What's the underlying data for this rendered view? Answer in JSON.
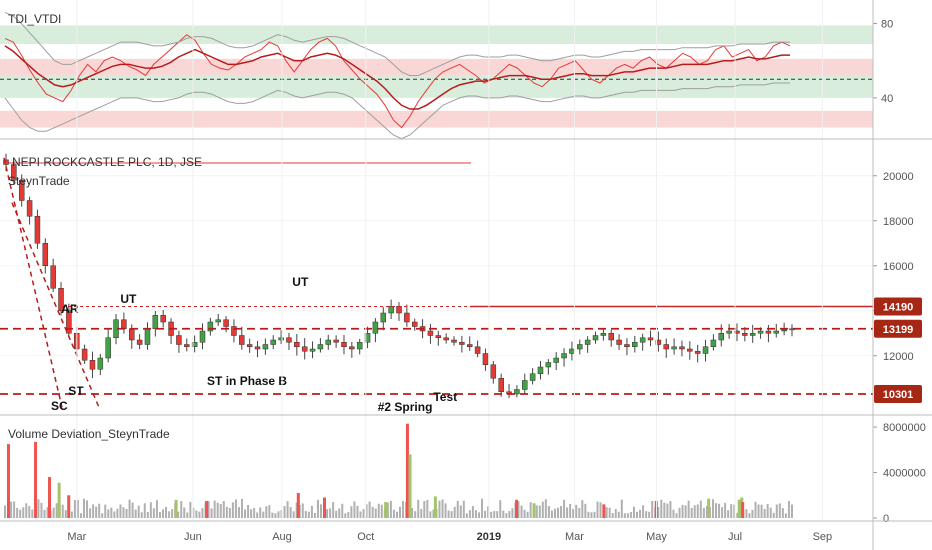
{
  "chart_data": [
    {
      "type": "line",
      "title": "TDI_VTDI",
      "y_ticks": [
        40,
        80
      ],
      "ylim": [
        20,
        90
      ],
      "bands": [
        {
          "from": 69,
          "to": 79,
          "color": "#d8eddc"
        },
        {
          "from": 52,
          "to": 61,
          "color": "#f9d7d7"
        },
        {
          "from": 40,
          "to": 52,
          "color": "#d8eddc"
        },
        {
          "from": 24,
          "to": 33,
          "color": "#f9d7d7"
        }
      ],
      "midline": 50,
      "series": [
        {
          "role": "rsi",
          "color": "#e53935",
          "values": [
            72,
            70,
            63,
            55,
            48,
            42,
            40,
            38,
            44,
            52,
            58,
            54,
            60,
            62,
            60,
            57,
            55,
            52,
            58,
            62,
            66,
            70,
            74,
            71,
            64,
            58,
            56,
            55,
            58,
            62,
            64,
            66,
            70,
            68,
            60,
            54,
            60,
            66,
            70,
            72,
            68,
            60,
            55,
            50,
            46,
            42,
            36,
            28,
            24,
            30,
            38,
            44,
            50,
            54,
            56,
            58,
            55,
            52,
            48,
            50,
            54,
            58,
            56,
            52,
            48,
            46,
            50,
            56,
            58,
            60,
            55,
            50,
            48,
            52,
            56,
            58,
            56,
            60,
            62,
            58,
            56,
            60,
            64,
            62,
            58,
            60,
            66,
            68,
            62,
            64,
            66,
            60,
            62,
            68,
            70,
            68
          ]
        },
        {
          "role": "signal",
          "color": "#b71c1c",
          "values": [
            68,
            65,
            61,
            57,
            53,
            50,
            47,
            46,
            47,
            49,
            51,
            53,
            55,
            57,
            58,
            58,
            57,
            56,
            56,
            57,
            59,
            62,
            64,
            66,
            64,
            62,
            60,
            58,
            58,
            59,
            60,
            62,
            63,
            64,
            62,
            60,
            60,
            62,
            63,
            64,
            63,
            61,
            58,
            55,
            52,
            49,
            45,
            40,
            36,
            34,
            34,
            36,
            39,
            42,
            45,
            47,
            48,
            49,
            49,
            50,
            51,
            52,
            52,
            52,
            51,
            50,
            50,
            51,
            52,
            53,
            53,
            52,
            52,
            52,
            53,
            54,
            54,
            55,
            56,
            56,
            56,
            57,
            58,
            58,
            58,
            58,
            59,
            60,
            60,
            61,
            62,
            61,
            61,
            62,
            63,
            63
          ]
        },
        {
          "role": "upper_band",
          "color": "#9e9e9e",
          "values": [
            86,
            84,
            80,
            75,
            70,
            65,
            60,
            58,
            58,
            60,
            62,
            64,
            66,
            68,
            70,
            70,
            70,
            69,
            68,
            68,
            69,
            70,
            72,
            73,
            73,
            72,
            70,
            68,
            67,
            67,
            68,
            70,
            72,
            74,
            73,
            71,
            70,
            71,
            72,
            73,
            73,
            72,
            70,
            68,
            66,
            64,
            62,
            58,
            54,
            52,
            52,
            54,
            56,
            58,
            60,
            62,
            63,
            63,
            62,
            62,
            62,
            63,
            63,
            62,
            61,
            60,
            60,
            61,
            62,
            63,
            63,
            62,
            62,
            63,
            64,
            65,
            65,
            66,
            66,
            66,
            66,
            66,
            67,
            67,
            67,
            67,
            68,
            68,
            68,
            69,
            69,
            69,
            69,
            70,
            70,
            70
          ]
        },
        {
          "role": "lower_band",
          "color": "#9e9e9e",
          "values": [
            40,
            34,
            28,
            24,
            22,
            22,
            24,
            26,
            28,
            30,
            32,
            34,
            36,
            38,
            40,
            40,
            40,
            39,
            38,
            38,
            39,
            40,
            42,
            43,
            43,
            42,
            40,
            38,
            37,
            37,
            38,
            40,
            42,
            44,
            43,
            41,
            40,
            41,
            42,
            43,
            43,
            42,
            40,
            36,
            32,
            28,
            24,
            20,
            18,
            20,
            24,
            28,
            32,
            36,
            38,
            40,
            41,
            41,
            40,
            40,
            40,
            41,
            41,
            40,
            39,
            38,
            38,
            39,
            40,
            41,
            41,
            40,
            40,
            41,
            42,
            43,
            43,
            44,
            44,
            44,
            44,
            44,
            45,
            45,
            45,
            45,
            46,
            46,
            46,
            47,
            47,
            47,
            47,
            48,
            48,
            48
          ]
        }
      ]
    },
    {
      "type": "candlestick",
      "title": "NEPI ROCKCASTLE PLC, 1D, JSE",
      "subtitle": "SteynTrade",
      "y_ticks": [
        12000,
        14000,
        16000,
        18000,
        20000
      ],
      "ylim": [
        9500,
        21500
      ],
      "x_labels": [
        "Mar",
        "Jun",
        "Aug",
        "Oct",
        "2019",
        "Mar",
        "May",
        "Jul",
        "Sep"
      ],
      "x_label_positions": [
        0.088,
        0.221,
        0.323,
        0.419,
        0.56,
        0.658,
        0.752,
        0.842,
        0.942
      ],
      "closes": [
        20500,
        19800,
        18900,
        18200,
        17000,
        16000,
        15000,
        14000,
        13000,
        12300,
        11800,
        11400,
        11900,
        12800,
        13600,
        13200,
        12700,
        12500,
        13200,
        13800,
        13500,
        12900,
        12500,
        12400,
        12600,
        13100,
        13500,
        13600,
        13300,
        12900,
        12500,
        12400,
        12300,
        12500,
        12700,
        12800,
        12600,
        12400,
        12200,
        12300,
        12500,
        12700,
        12600,
        12400,
        12300,
        12600,
        13000,
        13500,
        13900,
        14200,
        13900,
        13500,
        13300,
        13100,
        12900,
        12800,
        12700,
        12600,
        12500,
        12400,
        12100,
        11600,
        11000,
        10400,
        10300,
        10500,
        10900,
        11200,
        11500,
        11700,
        11900,
        12100,
        12300,
        12500,
        12700,
        12900,
        13000,
        12700,
        12500,
        12400,
        12600,
        12800,
        12700,
        12500,
        12300,
        12400,
        12300,
        12200,
        12100,
        12400,
        12700,
        13000,
        13100,
        13000,
        12900,
        13000,
        13100,
        13000,
        13100,
        13150,
        13200
      ],
      "levels": [
        {
          "value": 14190,
          "label": "14190",
          "style": "dotted",
          "color": "#c62828"
        },
        {
          "value": 13199,
          "label": "13199",
          "style": "dashed",
          "color": "#b71c1c"
        },
        {
          "value": 10301,
          "label": "10301",
          "style": "dashed",
          "color": "#b71c1c"
        }
      ],
      "annotations": [
        {
          "text": "AR",
          "x": 0.08,
          "y": 13900
        },
        {
          "text": "UT",
          "x": 0.147,
          "y": 14350
        },
        {
          "text": "UT",
          "x": 0.344,
          "y": 15100
        },
        {
          "text": "ST",
          "x": 0.087,
          "y": 10250
        },
        {
          "text": "SC",
          "x": 0.068,
          "y": 9600
        },
        {
          "text": "ST in Phase B",
          "x": 0.283,
          "y": 10700
        },
        {
          "text": "#2 Spring",
          "x": 0.464,
          "y": 9550
        },
        {
          "text": "Test",
          "x": 0.51,
          "y": 10000
        }
      ]
    },
    {
      "type": "bar",
      "title": "Volume Deviation_SteynTrade",
      "y_ticks": [
        0,
        4000000,
        8000000
      ],
      "y_tick_labels": [
        "0",
        "4000000",
        "8000000"
      ],
      "ylim": [
        0,
        8800000
      ],
      "spikes": [
        {
          "x": 0.008,
          "value": 6500000,
          "color": "#ef5350"
        },
        {
          "x": 0.039,
          "value": 6700000,
          "color": "#ef5350"
        },
        {
          "x": 0.055,
          "value": 3600000,
          "color": "#ef5350"
        },
        {
          "x": 0.066,
          "value": 3100000,
          "color": "#a5c46a"
        },
        {
          "x": 0.077,
          "value": 2000000,
          "color": "#ef5350"
        },
        {
          "x": 0.2,
          "value": 1600000,
          "color": "#a5c46a"
        },
        {
          "x": 0.235,
          "value": 1500000,
          "color": "#ef5350"
        },
        {
          "x": 0.34,
          "value": 2200000,
          "color": "#ef5350"
        },
        {
          "x": 0.37,
          "value": 1800000,
          "color": "#ef5350"
        },
        {
          "x": 0.44,
          "value": 1400000,
          "color": "#a5c46a"
        },
        {
          "x": 0.465,
          "value": 8300000,
          "color": "#ef5350"
        },
        {
          "x": 0.468,
          "value": 5600000,
          "color": "#a5c46a"
        },
        {
          "x": 0.497,
          "value": 1900000,
          "color": "#a5c46a"
        },
        {
          "x": 0.59,
          "value": 1600000,
          "color": "#ef5350"
        },
        {
          "x": 0.61,
          "value": 1300000,
          "color": "#a5c46a"
        },
        {
          "x": 0.69,
          "value": 1200000,
          "color": "#ef5350"
        },
        {
          "x": 0.75,
          "value": 1500000,
          "color": "#ef5350"
        },
        {
          "x": 0.81,
          "value": 1700000,
          "color": "#a5c46a"
        },
        {
          "x": 0.845,
          "value": 1600000,
          "color": "#a5c46a"
        },
        {
          "x": 0.848,
          "value": 1800000,
          "color": "#a5c46a"
        },
        {
          "x": 0.849,
          "value": 1400000,
          "color": "#ef5350"
        }
      ]
    }
  ]
}
